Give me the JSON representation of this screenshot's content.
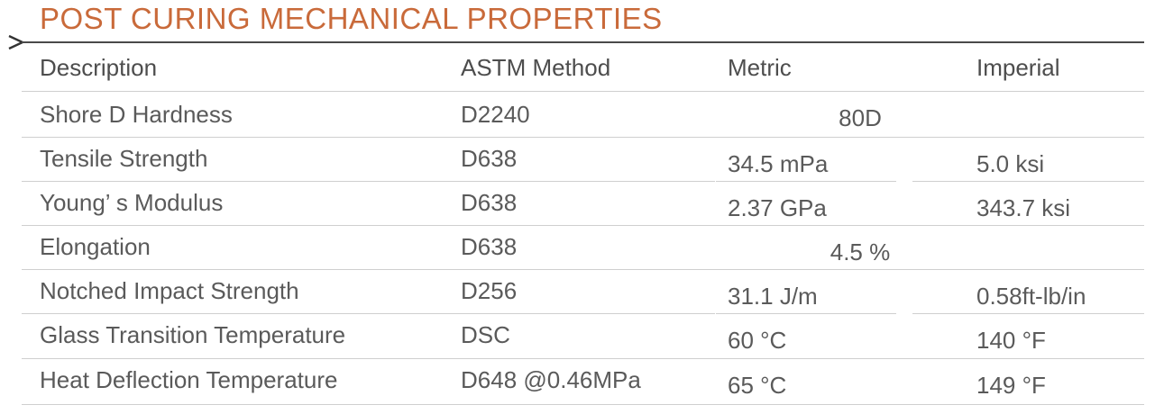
{
  "title": "POST CURING MECHANICAL PROPERTIES",
  "table": {
    "headers": {
      "description": "Description",
      "astm": "ASTM Method",
      "metric": "Metric",
      "imperial": "Imperial"
    },
    "rows": [
      {
        "description": "Shore D Hardness",
        "astm": "D2240",
        "merged": "80D"
      },
      {
        "description": "Tensile Strength",
        "astm": "D638",
        "metric": "34.5 mPa",
        "imperial": "5.0 ksi"
      },
      {
        "description": "Young’ s Modulus",
        "astm": "D638",
        "metric": "2.37 GPa",
        "imperial": "343.7 ksi"
      },
      {
        "description": "Elongation",
        "astm": "D638",
        "merged": "4.5 %"
      },
      {
        "description": "Notched Impact Strength",
        "astm": "D256",
        "metric": "31.1 J/m",
        "imperial": "0.58ft-lb/in"
      },
      {
        "description": "Glass Transition Temperature",
        "astm": "DSC",
        "metric": "60 °C",
        "imperial": "140 °F"
      },
      {
        "description": "Heat Deflection Temperature",
        "astm": "D648 @0.46MPa",
        "metric": "65 °C",
        "imperial": "149 °F"
      }
    ]
  },
  "colors": {
    "title": "#c96a3a",
    "text": "#5a5a5a",
    "rule": "#4a4a4a",
    "row_line": "#cfcfcf"
  }
}
